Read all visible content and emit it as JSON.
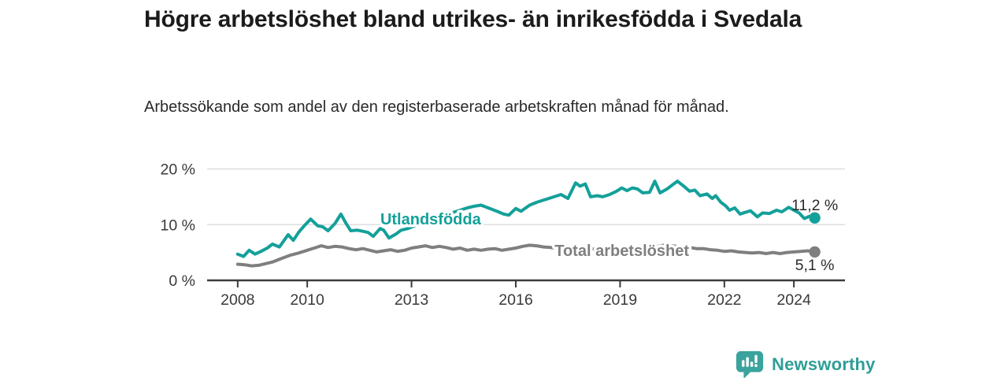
{
  "header": {
    "title": "Högre arbetslöshet bland utrikes- än inrikesfödda i Svedala",
    "subtitle": "Arbetssökande som andel av den registerbaserade arbetskraften månad för månad."
  },
  "footer": {
    "brand_name": "Newsworthy",
    "brand_color": "#2f9e97",
    "logo_icon": "bar-chart-speech-bubble-icon"
  },
  "chart_data": {
    "type": "line",
    "title": "Högre arbetslöshet bland utrikes- än inrikesfödda i Svedala",
    "subtitle": "Arbetssökande som andel av den registerbaserade arbetskraften månad för månad.",
    "xlabel": "",
    "ylabel": "",
    "xlim": [
      2007.12,
      2025.47
    ],
    "ylim": [
      0,
      21.2
    ],
    "grid": "horizontal",
    "legend": "inline-labels",
    "x_ticks": [
      {
        "year": 2008,
        "label": "2008"
      },
      {
        "year": 2010,
        "label": "2010"
      },
      {
        "year": 2013,
        "label": "2013"
      },
      {
        "year": 2016,
        "label": "2016"
      },
      {
        "year": 2019,
        "label": "2019"
      },
      {
        "year": 2022,
        "label": "2022"
      },
      {
        "year": 2024,
        "label": "2024"
      }
    ],
    "y_ticks": [
      {
        "value": 0,
        "label": "0 %"
      },
      {
        "value": 10,
        "label": "10 %"
      },
      {
        "value": 20,
        "label": "20 %"
      }
    ],
    "colors": {
      "axis": "#3b3b3b",
      "grid": "#dedede",
      "tick_label": "#3a3a3a",
      "value_label": "#2b2b2b"
    },
    "series": [
      {
        "name": "Utlandsfödda",
        "color": "#14a09a",
        "end_value": 11.2,
        "end_label": "11,2 %",
        "end_label_position": "above",
        "label_anchor": {
          "year": 2013.55,
          "value": 11.0
        },
        "points": [
          [
            2008.0,
            4.7
          ],
          [
            2008.17,
            4.3
          ],
          [
            2008.33,
            5.4
          ],
          [
            2008.5,
            4.7
          ],
          [
            2008.67,
            5.2
          ],
          [
            2008.85,
            5.8
          ],
          [
            2009.0,
            6.5
          ],
          [
            2009.2,
            6.0
          ],
          [
            2009.45,
            8.2
          ],
          [
            2009.6,
            7.2
          ],
          [
            2009.75,
            8.6
          ],
          [
            2009.9,
            9.7
          ],
          [
            2010.1,
            11.0
          ],
          [
            2010.3,
            9.8
          ],
          [
            2010.45,
            9.6
          ],
          [
            2010.6,
            8.9
          ],
          [
            2010.8,
            10.2
          ],
          [
            2010.97,
            11.9
          ],
          [
            2011.1,
            10.4
          ],
          [
            2011.25,
            8.9
          ],
          [
            2011.45,
            9.0
          ],
          [
            2011.6,
            8.8
          ],
          [
            2011.75,
            8.6
          ],
          [
            2011.9,
            7.9
          ],
          [
            2012.1,
            9.3
          ],
          [
            2012.2,
            9.0
          ],
          [
            2012.35,
            7.6
          ],
          [
            2012.55,
            8.3
          ],
          [
            2012.7,
            9.0
          ],
          [
            2012.9,
            9.3
          ],
          [
            2013.1,
            9.8
          ],
          [
            2013.35,
            10.4
          ],
          [
            2013.6,
            11.0
          ],
          [
            2013.85,
            11.5
          ],
          [
            2014.1,
            12.0
          ],
          [
            2014.35,
            12.5
          ],
          [
            2014.6,
            13.0
          ],
          [
            2014.8,
            13.3
          ],
          [
            2015.0,
            13.5
          ],
          [
            2015.25,
            12.9
          ],
          [
            2015.5,
            12.3
          ],
          [
            2015.65,
            11.9
          ],
          [
            2015.8,
            11.7
          ],
          [
            2016.0,
            12.9
          ],
          [
            2016.15,
            12.4
          ],
          [
            2016.4,
            13.5
          ],
          [
            2016.6,
            14.0
          ],
          [
            2016.85,
            14.5
          ],
          [
            2017.1,
            15.0
          ],
          [
            2017.3,
            15.4
          ],
          [
            2017.5,
            14.7
          ],
          [
            2017.72,
            17.5
          ],
          [
            2017.85,
            16.9
          ],
          [
            2018.0,
            17.3
          ],
          [
            2018.15,
            15.0
          ],
          [
            2018.35,
            15.2
          ],
          [
            2018.5,
            15.0
          ],
          [
            2018.7,
            15.4
          ],
          [
            2018.9,
            16.0
          ],
          [
            2019.05,
            16.6
          ],
          [
            2019.2,
            16.1
          ],
          [
            2019.35,
            16.6
          ],
          [
            2019.5,
            16.4
          ],
          [
            2019.65,
            15.7
          ],
          [
            2019.85,
            15.8
          ],
          [
            2020.0,
            17.8
          ],
          [
            2020.15,
            15.7
          ],
          [
            2020.35,
            16.4
          ],
          [
            2020.5,
            17.1
          ],
          [
            2020.65,
            17.8
          ],
          [
            2020.85,
            16.8
          ],
          [
            2021.0,
            16.0
          ],
          [
            2021.15,
            16.2
          ],
          [
            2021.3,
            15.2
          ],
          [
            2021.5,
            15.5
          ],
          [
            2021.65,
            14.7
          ],
          [
            2021.75,
            15.2
          ],
          [
            2021.9,
            14.0
          ],
          [
            2022.05,
            13.3
          ],
          [
            2022.15,
            12.6
          ],
          [
            2022.3,
            13.0
          ],
          [
            2022.45,
            11.9
          ],
          [
            2022.6,
            12.2
          ],
          [
            2022.75,
            12.5
          ],
          [
            2022.95,
            11.4
          ],
          [
            2023.1,
            12.1
          ],
          [
            2023.3,
            12.0
          ],
          [
            2023.5,
            12.6
          ],
          [
            2023.65,
            12.3
          ],
          [
            2023.85,
            13.1
          ],
          [
            2024.0,
            12.6
          ],
          [
            2024.15,
            12.1
          ],
          [
            2024.3,
            11.1
          ],
          [
            2024.45,
            11.5
          ],
          [
            2024.6,
            11.2
          ]
        ]
      },
      {
        "name": "Total arbetslöshet",
        "color": "#7f7f7f",
        "end_value": 5.1,
        "end_label": "5,1 %",
        "end_label_position": "below",
        "label_anchor": {
          "year": 2019.05,
          "value": 5.37
        },
        "points": [
          [
            2008.0,
            2.9
          ],
          [
            2008.2,
            2.8
          ],
          [
            2008.4,
            2.6
          ],
          [
            2008.6,
            2.7
          ],
          [
            2008.8,
            3.0
          ],
          [
            2009.0,
            3.3
          ],
          [
            2009.25,
            3.9
          ],
          [
            2009.5,
            4.5
          ],
          [
            2009.75,
            4.9
          ],
          [
            2010.0,
            5.4
          ],
          [
            2010.2,
            5.8
          ],
          [
            2010.4,
            6.2
          ],
          [
            2010.6,
            5.9
          ],
          [
            2010.8,
            6.1
          ],
          [
            2011.0,
            6.0
          ],
          [
            2011.2,
            5.7
          ],
          [
            2011.4,
            5.5
          ],
          [
            2011.6,
            5.7
          ],
          [
            2011.8,
            5.4
          ],
          [
            2012.0,
            5.1
          ],
          [
            2012.2,
            5.3
          ],
          [
            2012.4,
            5.5
          ],
          [
            2012.6,
            5.2
          ],
          [
            2012.8,
            5.4
          ],
          [
            2013.0,
            5.8
          ],
          [
            2013.2,
            6.0
          ],
          [
            2013.4,
            6.2
          ],
          [
            2013.6,
            5.9
          ],
          [
            2013.8,
            6.1
          ],
          [
            2014.0,
            5.9
          ],
          [
            2014.2,
            5.6
          ],
          [
            2014.4,
            5.8
          ],
          [
            2014.6,
            5.4
          ],
          [
            2014.8,
            5.6
          ],
          [
            2015.0,
            5.4
          ],
          [
            2015.2,
            5.6
          ],
          [
            2015.4,
            5.7
          ],
          [
            2015.6,
            5.4
          ],
          [
            2015.8,
            5.6
          ],
          [
            2016.0,
            5.8
          ],
          [
            2016.2,
            6.1
          ],
          [
            2016.4,
            6.3
          ],
          [
            2016.6,
            6.2
          ],
          [
            2016.8,
            6.0
          ],
          [
            2017.0,
            5.9
          ],
          [
            2017.25,
            5.7
          ],
          [
            2017.5,
            5.6
          ],
          [
            2017.75,
            5.8
          ],
          [
            2018.0,
            5.9
          ],
          [
            2018.25,
            5.6
          ],
          [
            2018.5,
            5.5
          ],
          [
            2018.75,
            5.7
          ],
          [
            2019.0,
            5.6
          ],
          [
            2019.25,
            5.4
          ],
          [
            2019.5,
            5.4
          ],
          [
            2019.75,
            5.6
          ],
          [
            2020.0,
            6.0
          ],
          [
            2020.25,
            6.3
          ],
          [
            2020.5,
            6.2
          ],
          [
            2020.75,
            6.0
          ],
          [
            2021.0,
            5.9
          ],
          [
            2021.2,
            5.7
          ],
          [
            2021.4,
            5.7
          ],
          [
            2021.6,
            5.5
          ],
          [
            2021.8,
            5.4
          ],
          [
            2022.0,
            5.2
          ],
          [
            2022.2,
            5.3
          ],
          [
            2022.4,
            5.1
          ],
          [
            2022.6,
            5.0
          ],
          [
            2022.8,
            4.9
          ],
          [
            2023.0,
            5.0
          ],
          [
            2023.2,
            4.8
          ],
          [
            2023.4,
            5.0
          ],
          [
            2023.6,
            4.8
          ],
          [
            2023.8,
            5.0
          ],
          [
            2024.0,
            5.1
          ],
          [
            2024.2,
            5.2
          ],
          [
            2024.4,
            5.3
          ],
          [
            2024.6,
            5.1
          ]
        ]
      }
    ]
  }
}
